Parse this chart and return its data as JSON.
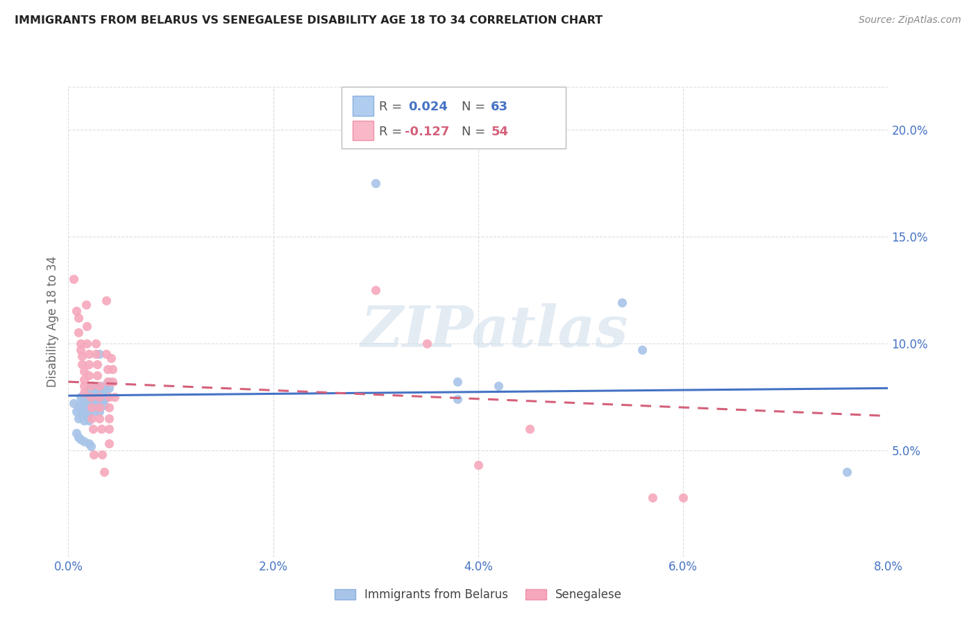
{
  "title": "IMMIGRANTS FROM BELARUS VS SENEGALESE DISABILITY AGE 18 TO 34 CORRELATION CHART",
  "source": "Source: ZipAtlas.com",
  "ylabel_label": "Disability Age 18 to 34",
  "x_min": 0.0,
  "x_max": 0.08,
  "y_min": 0.0,
  "y_max": 0.22,
  "x_ticks": [
    0.0,
    0.02,
    0.04,
    0.06,
    0.08
  ],
  "x_tick_labels": [
    "0.0%",
    "2.0%",
    "4.0%",
    "6.0%",
    "8.0%"
  ],
  "y_ticks": [
    0.05,
    0.1,
    0.15,
    0.2
  ],
  "y_tick_labels": [
    "5.0%",
    "10.0%",
    "15.0%",
    "20.0%"
  ],
  "color_blue": "#a8c4e8",
  "color_pink": "#f5a8bc",
  "color_blue_line": "#4472c4",
  "color_pink_line": "#d4607a",
  "legend_label_blue": "Immigrants from Belarus",
  "legend_label_pink": "Senegalese",
  "R_blue": "0.024",
  "N_blue": "63",
  "R_pink": "-0.127",
  "N_pink": "54",
  "blue_line_y0": 0.0755,
  "blue_line_y1": 0.079,
  "pink_line_y0": 0.082,
  "pink_line_y1": 0.066,
  "scatter_blue": [
    [
      0.0005,
      0.072
    ],
    [
      0.0008,
      0.068
    ],
    [
      0.001,
      0.07
    ],
    [
      0.001,
      0.065
    ],
    [
      0.0012,
      0.075
    ],
    [
      0.0012,
      0.072
    ],
    [
      0.0013,
      0.068
    ],
    [
      0.0013,
      0.066
    ],
    [
      0.0015,
      0.073
    ],
    [
      0.0015,
      0.07
    ],
    [
      0.0015,
      0.067
    ],
    [
      0.0015,
      0.064
    ],
    [
      0.0016,
      0.075
    ],
    [
      0.0017,
      0.072
    ],
    [
      0.0018,
      0.069
    ],
    [
      0.0018,
      0.066
    ],
    [
      0.002,
      0.078
    ],
    [
      0.002,
      0.075
    ],
    [
      0.002,
      0.072
    ],
    [
      0.002,
      0.07
    ],
    [
      0.002,
      0.067
    ],
    [
      0.002,
      0.064
    ],
    [
      0.0022,
      0.076
    ],
    [
      0.0022,
      0.073
    ],
    [
      0.0022,
      0.07
    ],
    [
      0.0023,
      0.08
    ],
    [
      0.0024,
      0.077
    ],
    [
      0.0025,
      0.074
    ],
    [
      0.0025,
      0.071
    ],
    [
      0.0025,
      0.068
    ],
    [
      0.0027,
      0.079
    ],
    [
      0.0027,
      0.076
    ],
    [
      0.0028,
      0.073
    ],
    [
      0.0028,
      0.07
    ],
    [
      0.003,
      0.095
    ],
    [
      0.003,
      0.08
    ],
    [
      0.003,
      0.077
    ],
    [
      0.003,
      0.074
    ],
    [
      0.003,
      0.071
    ],
    [
      0.003,
      0.068
    ],
    [
      0.0032,
      0.076
    ],
    [
      0.0033,
      0.073
    ],
    [
      0.0035,
      0.08
    ],
    [
      0.0035,
      0.077
    ],
    [
      0.0035,
      0.074
    ],
    [
      0.0035,
      0.071
    ],
    [
      0.0037,
      0.078
    ],
    [
      0.0038,
      0.075
    ],
    [
      0.004,
      0.082
    ],
    [
      0.004,
      0.079
    ],
    [
      0.0008,
      0.058
    ],
    [
      0.001,
      0.056
    ],
    [
      0.0012,
      0.055
    ],
    [
      0.0015,
      0.054
    ],
    [
      0.002,
      0.053
    ],
    [
      0.0022,
      0.052
    ],
    [
      0.03,
      0.175
    ],
    [
      0.038,
      0.082
    ],
    [
      0.038,
      0.074
    ],
    [
      0.042,
      0.08
    ],
    [
      0.054,
      0.119
    ],
    [
      0.056,
      0.097
    ],
    [
      0.076,
      0.04
    ]
  ],
  "scatter_pink": [
    [
      0.0005,
      0.13
    ],
    [
      0.0008,
      0.115
    ],
    [
      0.001,
      0.112
    ],
    [
      0.001,
      0.105
    ],
    [
      0.0012,
      0.1
    ],
    [
      0.0012,
      0.097
    ],
    [
      0.0013,
      0.094
    ],
    [
      0.0013,
      0.09
    ],
    [
      0.0015,
      0.087
    ],
    [
      0.0015,
      0.083
    ],
    [
      0.0015,
      0.08
    ],
    [
      0.0015,
      0.077
    ],
    [
      0.0017,
      0.118
    ],
    [
      0.0018,
      0.108
    ],
    [
      0.0018,
      0.1
    ],
    [
      0.002,
      0.095
    ],
    [
      0.002,
      0.09
    ],
    [
      0.002,
      0.085
    ],
    [
      0.0022,
      0.08
    ],
    [
      0.0022,
      0.075
    ],
    [
      0.0023,
      0.07
    ],
    [
      0.0023,
      0.065
    ],
    [
      0.0024,
      0.06
    ],
    [
      0.0025,
      0.048
    ],
    [
      0.0027,
      0.1
    ],
    [
      0.0027,
      0.095
    ],
    [
      0.0028,
      0.09
    ],
    [
      0.0028,
      0.085
    ],
    [
      0.003,
      0.08
    ],
    [
      0.003,
      0.075
    ],
    [
      0.003,
      0.07
    ],
    [
      0.003,
      0.065
    ],
    [
      0.0032,
      0.06
    ],
    [
      0.0033,
      0.048
    ],
    [
      0.0035,
      0.04
    ],
    [
      0.0037,
      0.12
    ],
    [
      0.0037,
      0.095
    ],
    [
      0.0038,
      0.088
    ],
    [
      0.0038,
      0.082
    ],
    [
      0.004,
      0.075
    ],
    [
      0.004,
      0.07
    ],
    [
      0.004,
      0.065
    ],
    [
      0.004,
      0.06
    ],
    [
      0.004,
      0.053
    ],
    [
      0.0042,
      0.093
    ],
    [
      0.0043,
      0.088
    ],
    [
      0.0043,
      0.082
    ],
    [
      0.0045,
      0.075
    ],
    [
      0.03,
      0.125
    ],
    [
      0.035,
      0.1
    ],
    [
      0.04,
      0.043
    ],
    [
      0.045,
      0.06
    ],
    [
      0.057,
      0.028
    ],
    [
      0.06,
      0.028
    ]
  ],
  "watermark_text": "ZIPatlas",
  "background_color": "#ffffff",
  "grid_color": "#dddddd"
}
